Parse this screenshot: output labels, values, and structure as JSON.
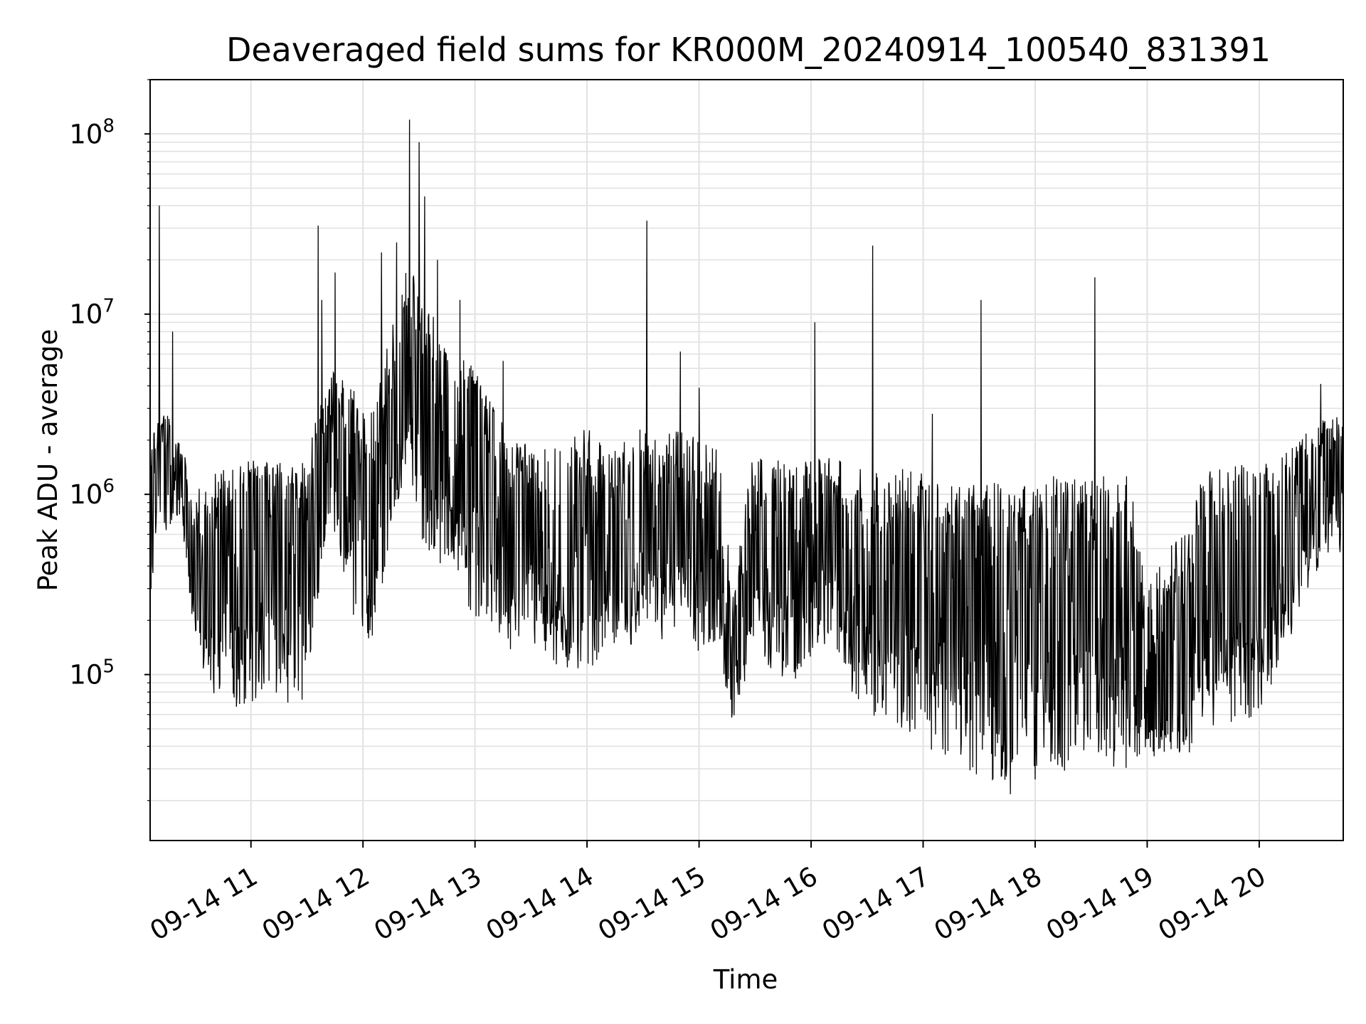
{
  "chart_data": {
    "type": "line",
    "title": "Deaveraged field sums for KR000M_20240914_100540_831391",
    "xlabel": "Time",
    "ylabel": "Peak ADU - average",
    "yscale": "log",
    "xlim": [
      "2024-09-14 10:06",
      "2024-09-14 20:45"
    ],
    "ylim": [
      12000,
      200000000
    ],
    "x_ticks": [
      "09-14 11",
      "09-14 12",
      "09-14 13",
      "09-14 14",
      "09-14 15",
      "09-14 16",
      "09-14 17",
      "09-14 18",
      "09-14 19",
      "09-14 20"
    ],
    "y_ticks": [
      {
        "base": "10",
        "exp": "5",
        "value": 100000
      },
      {
        "base": "10",
        "exp": "6",
        "value": 1000000
      },
      {
        "base": "10",
        "exp": "7",
        "value": 10000000
      },
      {
        "base": "10",
        "exp": "8",
        "value": 100000000
      }
    ],
    "grid": true,
    "line_color": "#000000",
    "series": [
      {
        "x": [
          "2024-09-14 10:06",
          "2024-09-14 10:10",
          "2024-09-14 10:15",
          "2024-09-14 10:20",
          "2024-09-14 10:25",
          "2024-09-14 10:30",
          "2024-09-14 10:40",
          "2024-09-14 10:50",
          "2024-09-14 11:00",
          "2024-09-14 11:10",
          "2024-09-14 11:20",
          "2024-09-14 11:30",
          "2024-09-14 11:36",
          "2024-09-14 11:45",
          "2024-09-14 11:55",
          "2024-09-14 12:05",
          "2024-09-14 12:15",
          "2024-09-14 12:24",
          "2024-09-14 12:30",
          "2024-09-14 12:40",
          "2024-09-14 12:50",
          "2024-09-14 13:00",
          "2024-09-14 13:10",
          "2024-09-14 13:20",
          "2024-09-14 13:30",
          "2024-09-14 13:40",
          "2024-09-14 13:50",
          "2024-09-14 14:00",
          "2024-09-14 14:10",
          "2024-09-14 14:20",
          "2024-09-14 14:30",
          "2024-09-14 14:40",
          "2024-09-14 14:50",
          "2024-09-14 15:00",
          "2024-09-14 15:10",
          "2024-09-14 15:18",
          "2024-09-14 15:30",
          "2024-09-14 15:40",
          "2024-09-14 15:50",
          "2024-09-14 16:00",
          "2024-09-14 16:10",
          "2024-09-14 16:20",
          "2024-09-14 16:30",
          "2024-09-14 16:40",
          "2024-09-14 16:50",
          "2024-09-14 17:00",
          "2024-09-14 17:10",
          "2024-09-14 17:20",
          "2024-09-14 17:30",
          "2024-09-14 17:40",
          "2024-09-14 17:50",
          "2024-09-14 18:00",
          "2024-09-14 18:10",
          "2024-09-14 18:20",
          "2024-09-14 18:30",
          "2024-09-14 18:40",
          "2024-09-14 18:50",
          "2024-09-14 19:00",
          "2024-09-14 19:10",
          "2024-09-14 19:20",
          "2024-09-14 19:30",
          "2024-09-14 19:40",
          "2024-09-14 19:50",
          "2024-09-14 20:00",
          "2024-09-14 20:10",
          "2024-09-14 20:20",
          "2024-09-14 20:30",
          "2024-09-14 20:40",
          "2024-09-14 20:45"
        ],
        "y": [
          400000,
          1500000,
          1200000,
          1800000,
          1000000,
          350000,
          300000,
          700000,
          800000,
          900000,
          700000,
          600000,
          1200000,
          2500000,
          1200000,
          700000,
          2500000,
          6000000,
          3000000,
          2000000,
          1500000,
          3000000,
          700000,
          600000,
          800000,
          500000,
          400000,
          350000,
          500000,
          600000,
          700000,
          600000,
          800000,
          400000,
          600000,
          80000,
          700000,
          500000,
          600000,
          700000,
          800000,
          500000,
          400000,
          350000,
          400000,
          450000,
          500000,
          400000,
          300000,
          250000,
          300000,
          350000,
          300000,
          250000,
          300000,
          350000,
          300000,
          60000,
          80000,
          100000,
          400000,
          500000,
          450000,
          500000,
          600000,
          800000,
          1200000,
          1600000,
          1400000
        ],
        "low": [
          200000,
          700000,
          500000,
          800000,
          400000,
          150000,
          70000,
          65000,
          65000,
          70000,
          65000,
          70000,
          200000,
          600000,
          200000,
          150000,
          600000,
          1500000,
          600000,
          400000,
          400000,
          150000,
          200000,
          120000,
          150000,
          120000,
          100000,
          90000,
          150000,
          120000,
          200000,
          150000,
          200000,
          100000,
          150000,
          52000,
          150000,
          100000,
          90000,
          120000,
          150000,
          80000,
          60000,
          55000,
          50000,
          40000,
          35000,
          30000,
          25000,
          20000,
          22000,
          25000,
          28000,
          25000,
          30000,
          30000,
          30000,
          35000,
          35000,
          35000,
          40000,
          50000,
          50000,
          60000,
          100000,
          200000,
          350000,
          500000,
          400000
        ],
        "high": [
          2000000,
          2500000,
          3000000,
          2000000,
          1800000,
          1000000,
          1500000,
          1500000,
          1600000,
          1500000,
          1500000,
          1500000,
          3000000,
          5000000,
          4000000,
          3000000,
          8000000,
          20000000,
          15000000,
          10000000,
          6000000,
          5000000,
          3000000,
          2000000,
          2000000,
          1800000,
          2000000,
          2500000,
          1800000,
          2000000,
          2500000,
          2000000,
          2500000,
          2000000,
          2000000,
          300000,
          2000000,
          1600000,
          1500000,
          1600000,
          1800000,
          1400000,
          1400000,
          1300000,
          1500000,
          1300000,
          1200000,
          1100000,
          1200000,
          1200000,
          1100000,
          1200000,
          1300000,
          1200000,
          1300000,
          1300000,
          1300000,
          300000,
          500000,
          600000,
          1400000,
          1500000,
          1500000,
          1500000,
          1500000,
          2000000,
          2500000,
          2800000,
          2500000
        ],
        "spikes": [
          {
            "x": "2024-09-14 10:11",
            "y": 40000000
          },
          {
            "x": "2024-09-14 10:18",
            "y": 8000000
          },
          {
            "x": "2024-09-14 11:36",
            "y": 31000000
          },
          {
            "x": "2024-09-14 11:38",
            "y": 12000000
          },
          {
            "x": "2024-09-14 11:45",
            "y": 17000000
          },
          {
            "x": "2024-09-14 12:10",
            "y": 22000000
          },
          {
            "x": "2024-09-14 12:18",
            "y": 25000000
          },
          {
            "x": "2024-09-14 12:25",
            "y": 120000000
          },
          {
            "x": "2024-09-14 12:30",
            "y": 90000000
          },
          {
            "x": "2024-09-14 12:33",
            "y": 45000000
          },
          {
            "x": "2024-09-14 12:40",
            "y": 20000000
          },
          {
            "x": "2024-09-14 12:52",
            "y": 12000000
          },
          {
            "x": "2024-09-14 13:15",
            "y": 5500000
          },
          {
            "x": "2024-09-14 14:32",
            "y": 33000000
          },
          {
            "x": "2024-09-14 14:50",
            "y": 6200000
          },
          {
            "x": "2024-09-14 15:00",
            "y": 3900000
          },
          {
            "x": "2024-09-14 16:02",
            "y": 9000000
          },
          {
            "x": "2024-09-14 16:33",
            "y": 24000000
          },
          {
            "x": "2024-09-14 17:05",
            "y": 2800000
          },
          {
            "x": "2024-09-14 17:31",
            "y": 12000000
          },
          {
            "x": "2024-09-14 18:32",
            "y": 16000000
          },
          {
            "x": "2024-09-14 20:33",
            "y": 4100000
          }
        ]
      }
    ]
  }
}
